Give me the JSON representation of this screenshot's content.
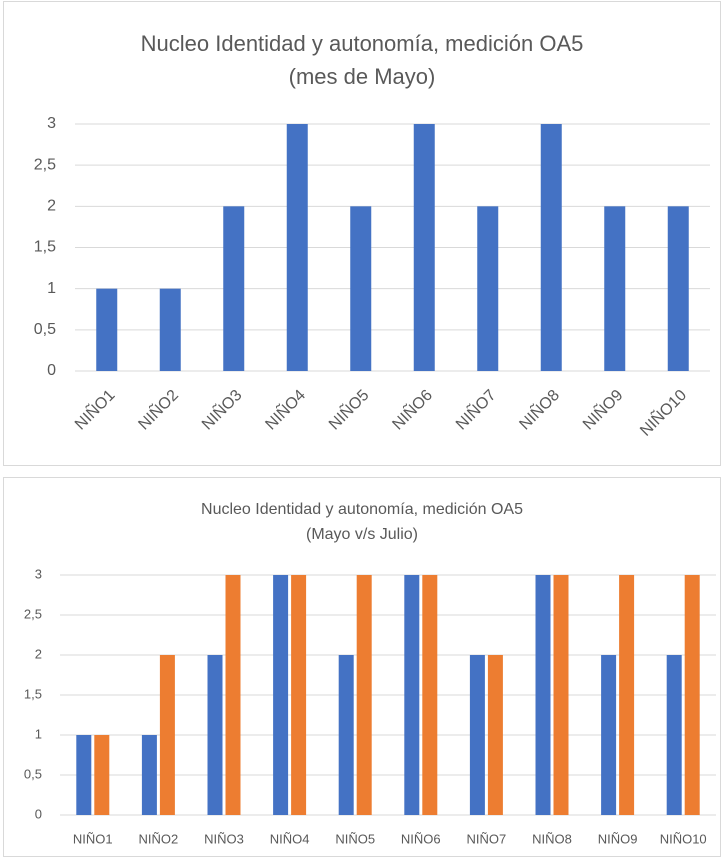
{
  "chart_data": [
    {
      "type": "bar",
      "title": "Nucleo Identidad y autonomía, medición OA5",
      "subtitle": "(mes de Mayo)",
      "categories": [
        "NIÑO1",
        "NIÑO2",
        "NIÑO3",
        "NIÑO4",
        "NIÑO5",
        "NIÑO6",
        "NIÑO7",
        "NIÑO8",
        "NIÑO9",
        "NIÑO10"
      ],
      "series": [
        {
          "color": "#4472c4",
          "values": [
            1,
            1,
            2,
            3,
            2,
            3,
            2,
            3,
            2,
            2
          ]
        }
      ],
      "ylim": [
        0,
        3
      ],
      "yticks": [
        0,
        {
          "value": 0.5,
          "label": "0,5"
        },
        1,
        {
          "value": 1.5,
          "label": "1,5"
        },
        2,
        {
          "value": 2.5,
          "label": "2,5"
        },
        3
      ],
      "grid": true
    },
    {
      "type": "bar",
      "title": "Nucleo Identidad y autonomía, medición OA5",
      "subtitle": "(Mayo v/s Julio)",
      "categories": [
        "NIÑO1",
        "NIÑO2",
        "NIÑO3",
        "NIÑO4",
        "NIÑO5",
        "NIÑO6",
        "NIÑO7",
        "NIÑO8",
        "NIÑO9",
        "NIÑO10"
      ],
      "series": [
        {
          "color": "#4472c4",
          "values": [
            1,
            1,
            2,
            3,
            2,
            3,
            2,
            3,
            2,
            2
          ]
        },
        {
          "color": "#ed7d31",
          "values": [
            1,
            2,
            3,
            3,
            3,
            3,
            2,
            3,
            3,
            3
          ]
        }
      ],
      "ylim": [
        0,
        3
      ],
      "yticks": [
        0,
        {
          "value": 0.5,
          "label": "0,5"
        },
        1,
        {
          "value": 1.5,
          "label": "1,5"
        },
        2,
        {
          "value": 2.5,
          "label": "2,5"
        },
        3
      ],
      "grid": true
    }
  ]
}
